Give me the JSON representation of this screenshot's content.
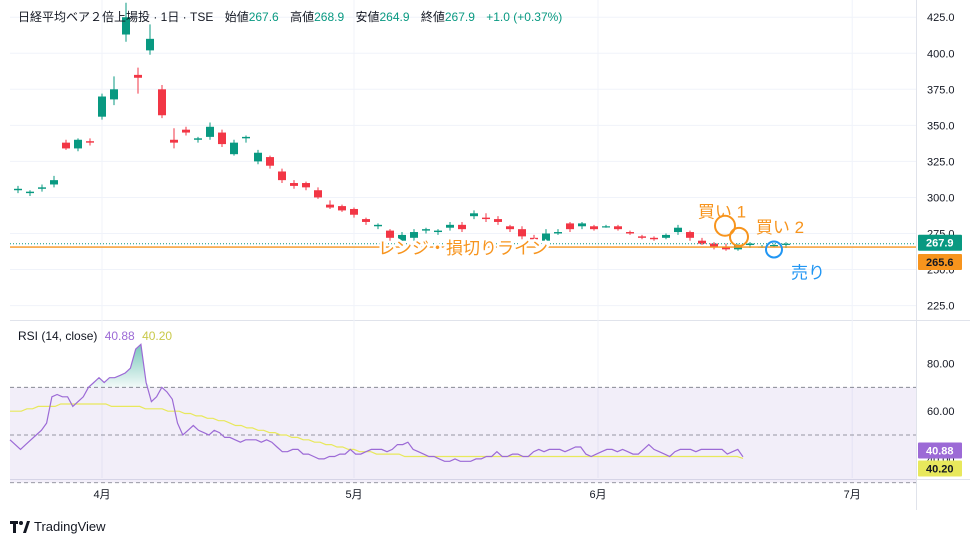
{
  "header": {
    "symbol": "日経平均ベア２倍上場投 · 1日 · TSE",
    "open_label": "始値",
    "open": "267.6",
    "high_label": "高値",
    "high": "268.9",
    "low_label": "安値",
    "low": "264.9",
    "close_label": "終値",
    "close": "267.9",
    "change": "+1.0 (+0.37%)"
  },
  "rsi_legend": {
    "label": "RSI (14, close)",
    "rsi": "40.88",
    "ma": "40.20"
  },
  "annotations": {
    "buy1": "買い 1",
    "buy2": "買い 2",
    "sell": "売り",
    "line": "レンジ・損切りライン"
  },
  "badges": {
    "last": "267.9",
    "line": "265.6",
    "rsi": "40.88",
    "rsi_ma": "40.20"
  },
  "brand": "TradingView",
  "colors": {
    "up": "#089981",
    "down": "#f23645",
    "annotation": "#f7941d",
    "sell": "#2196f3",
    "rsi": "#9c6ad6",
    "rsi_ma": "#e8e85c"
  },
  "chart_data": [
    {
      "type": "candlestick",
      "ylim": [
        215,
        430
      ],
      "yticks": [
        225.0,
        250.0,
        275.0,
        300.0,
        325.0,
        350.0,
        375.0,
        400.0,
        425.0
      ],
      "xticks": [
        {
          "label": "4月",
          "x": "04-01"
        },
        {
          "label": "5月",
          "x": "05-01"
        },
        {
          "label": "6月",
          "x": "06-01"
        },
        {
          "label": "7月",
          "x": "07-01"
        }
      ],
      "x": [
        "03-21",
        "03-22",
        "03-25",
        "03-26",
        "03-27",
        "03-28",
        "03-29",
        "04-01",
        "04-02",
        "04-03",
        "04-04",
        "04-05",
        "04-08",
        "04-09",
        "04-10",
        "04-11",
        "04-12",
        "04-15",
        "04-16",
        "04-17",
        "04-18",
        "04-19",
        "04-22",
        "04-23",
        "04-24",
        "04-25",
        "04-26",
        "04-30",
        "05-01",
        "05-02",
        "05-07",
        "05-08",
        "05-09",
        "05-10",
        "05-13",
        "05-14",
        "05-15",
        "05-16",
        "05-17",
        "05-20",
        "05-21",
        "05-22",
        "05-23",
        "05-24",
        "05-27",
        "05-28",
        "05-29",
        "05-30",
        "05-31",
        "06-03",
        "06-04",
        "06-05",
        "06-06",
        "06-07",
        "06-10",
        "06-11",
        "06-12",
        "06-13",
        "06-14",
        "06-17",
        "06-18",
        "06-19",
        "06-20",
        "06-21",
        "06-24"
      ],
      "candles": [
        [
          305,
          308,
          303,
          306
        ],
        [
          303,
          305,
          301,
          304
        ],
        [
          306,
          309,
          304,
          307
        ],
        [
          309,
          315,
          307,
          312
        ],
        [
          338,
          340,
          333,
          334
        ],
        [
          334,
          341,
          332,
          340
        ],
        [
          339,
          341,
          336,
          338
        ],
        [
          356,
          372,
          354,
          370
        ],
        [
          368,
          384,
          364,
          375
        ],
        [
          413,
          435,
          408,
          425
        ],
        [
          385,
          390,
          372,
          383
        ],
        [
          402,
          420,
          399,
          410
        ],
        [
          375,
          378,
          355,
          357
        ],
        [
          340,
          348,
          334,
          338
        ],
        [
          347,
          349,
          343,
          345
        ],
        [
          340,
          342,
          338,
          341
        ],
        [
          342,
          352,
          340,
          349
        ],
        [
          345,
          347,
          335,
          337
        ],
        [
          330,
          340,
          329,
          338
        ],
        [
          341,
          343,
          338,
          342
        ],
        [
          325,
          333,
          323,
          331
        ],
        [
          328,
          329,
          320,
          322
        ],
        [
          318,
          320,
          310,
          312
        ],
        [
          310,
          312,
          306,
          308
        ],
        [
          310,
          311,
          305,
          307
        ],
        [
          305,
          307,
          299,
          300
        ],
        [
          295,
          298,
          292,
          293
        ],
        [
          294,
          295,
          290,
          291
        ],
        [
          292,
          293,
          286,
          288
        ],
        [
          285,
          286,
          281,
          283
        ],
        [
          280,
          282,
          278,
          281
        ],
        [
          277,
          278,
          270,
          272
        ],
        [
          270,
          276,
          268,
          274
        ],
        [
          272,
          278,
          270,
          276
        ],
        [
          277,
          279,
          275,
          278
        ],
        [
          276,
          278,
          274,
          277
        ],
        [
          279,
          283,
          277,
          281
        ],
        [
          281,
          283,
          276,
          278
        ],
        [
          287,
          291,
          285,
          289
        ],
        [
          286,
          289,
          283,
          285
        ],
        [
          285,
          287,
          281,
          283
        ],
        [
          280,
          281,
          276,
          278
        ],
        [
          278,
          280,
          271,
          273
        ],
        [
          272,
          274,
          269,
          271
        ],
        [
          270,
          278,
          269,
          275
        ],
        [
          275,
          278,
          274,
          276
        ],
        [
          282,
          283,
          276,
          278
        ],
        [
          280,
          283,
          278,
          282
        ],
        [
          280,
          281,
          277,
          278
        ],
        [
          280,
          281,
          279,
          280
        ],
        [
          280,
          281,
          277,
          278
        ],
        [
          276,
          277,
          274,
          275
        ],
        [
          273,
          274,
          271,
          272
        ],
        [
          272,
          273,
          270,
          271
        ],
        [
          272,
          275,
          271,
          274
        ],
        [
          276,
          281,
          274,
          279
        ],
        [
          276,
          277,
          270,
          272
        ],
        [
          270,
          272,
          267,
          268
        ],
        [
          268,
          269,
          264,
          266
        ],
        [
          266,
          268,
          263,
          264
        ],
        [
          264,
          268,
          263,
          267
        ],
        [
          267,
          269,
          265,
          268
        ],
        [
          266,
          267,
          265,
          266
        ],
        [
          267,
          268,
          266,
          267
        ],
        [
          267.6,
          268.9,
          264.9,
          267.9
        ]
      ],
      "horizontal_line": 265.6,
      "markers": [
        {
          "label": "buy1",
          "x": "06-17",
          "y": 279
        },
        {
          "label": "buy2",
          "x": "06-18",
          "y": 272
        },
        {
          "label": "sell",
          "x": "06-21",
          "y": 266
        }
      ]
    },
    {
      "type": "line",
      "name": "RSI (14, close)",
      "ylim": [
        32,
        94
      ],
      "yticks": [
        40,
        60,
        80
      ],
      "band": [
        30,
        70
      ],
      "midline": 50,
      "series": [
        {
          "values": [
            48,
            46,
            44,
            46,
            48,
            50,
            52,
            55,
            66,
            67,
            66,
            66,
            62,
            64,
            66,
            70,
            72,
            74,
            72,
            74,
            74,
            75,
            76,
            78,
            86,
            88,
            72,
            64,
            66,
            70,
            68,
            65,
            55,
            50,
            52,
            54,
            52,
            51,
            50,
            52,
            51,
            49,
            49,
            48,
            47,
            48,
            48,
            48,
            47,
            48,
            47,
            45,
            43,
            43,
            44,
            44,
            42,
            42,
            41,
            40,
            40,
            41,
            41,
            42,
            42,
            44,
            42,
            42,
            43,
            44,
            44,
            44,
            43,
            44,
            46,
            46,
            47,
            44,
            43,
            42,
            41,
            41,
            40,
            39,
            39,
            40,
            39,
            39,
            39,
            40,
            40,
            41,
            41,
            43,
            41,
            41,
            42,
            42,
            41,
            41,
            43,
            44,
            43,
            44,
            44,
            44,
            43,
            44,
            45,
            45,
            42,
            41,
            42,
            43,
            44,
            44,
            43,
            44,
            43,
            42,
            42,
            44,
            46,
            44,
            43,
            42,
            41,
            43,
            44,
            44,
            44,
            43,
            44,
            44,
            44,
            44,
            44,
            42,
            43,
            44,
            40.88
          ]
        },
        {
          "values": [
            60,
            60,
            60,
            61,
            61,
            62,
            62,
            62,
            62,
            63,
            63,
            63,
            63,
            63,
            63,
            63,
            63,
            63,
            62,
            62,
            62,
            62,
            62,
            62,
            61,
            61,
            61,
            61,
            60,
            60,
            60,
            59,
            59,
            58,
            58,
            57,
            57,
            56,
            56,
            55,
            54,
            54,
            53,
            53,
            52,
            52,
            51,
            51,
            50,
            50,
            49,
            49,
            48,
            48,
            47,
            47,
            46,
            46,
            45,
            45,
            44,
            44,
            43,
            43,
            43,
            42,
            42,
            42,
            42,
            42,
            41,
            41,
            41,
            41,
            41,
            41,
            41,
            41,
            41,
            41,
            41,
            41,
            41,
            41,
            41,
            41,
            41,
            41,
            41,
            41,
            41,
            41,
            41,
            41,
            41,
            41,
            41,
            41,
            41,
            41,
            41,
            41,
            41,
            41,
            41,
            41,
            41,
            41,
            41,
            41,
            41,
            41,
            41,
            41,
            41,
            41,
            41,
            41,
            41,
            41,
            41,
            41,
            41,
            41,
            41,
            41,
            41,
            41,
            41,
            41,
            40.2
          ]
        }
      ]
    }
  ]
}
